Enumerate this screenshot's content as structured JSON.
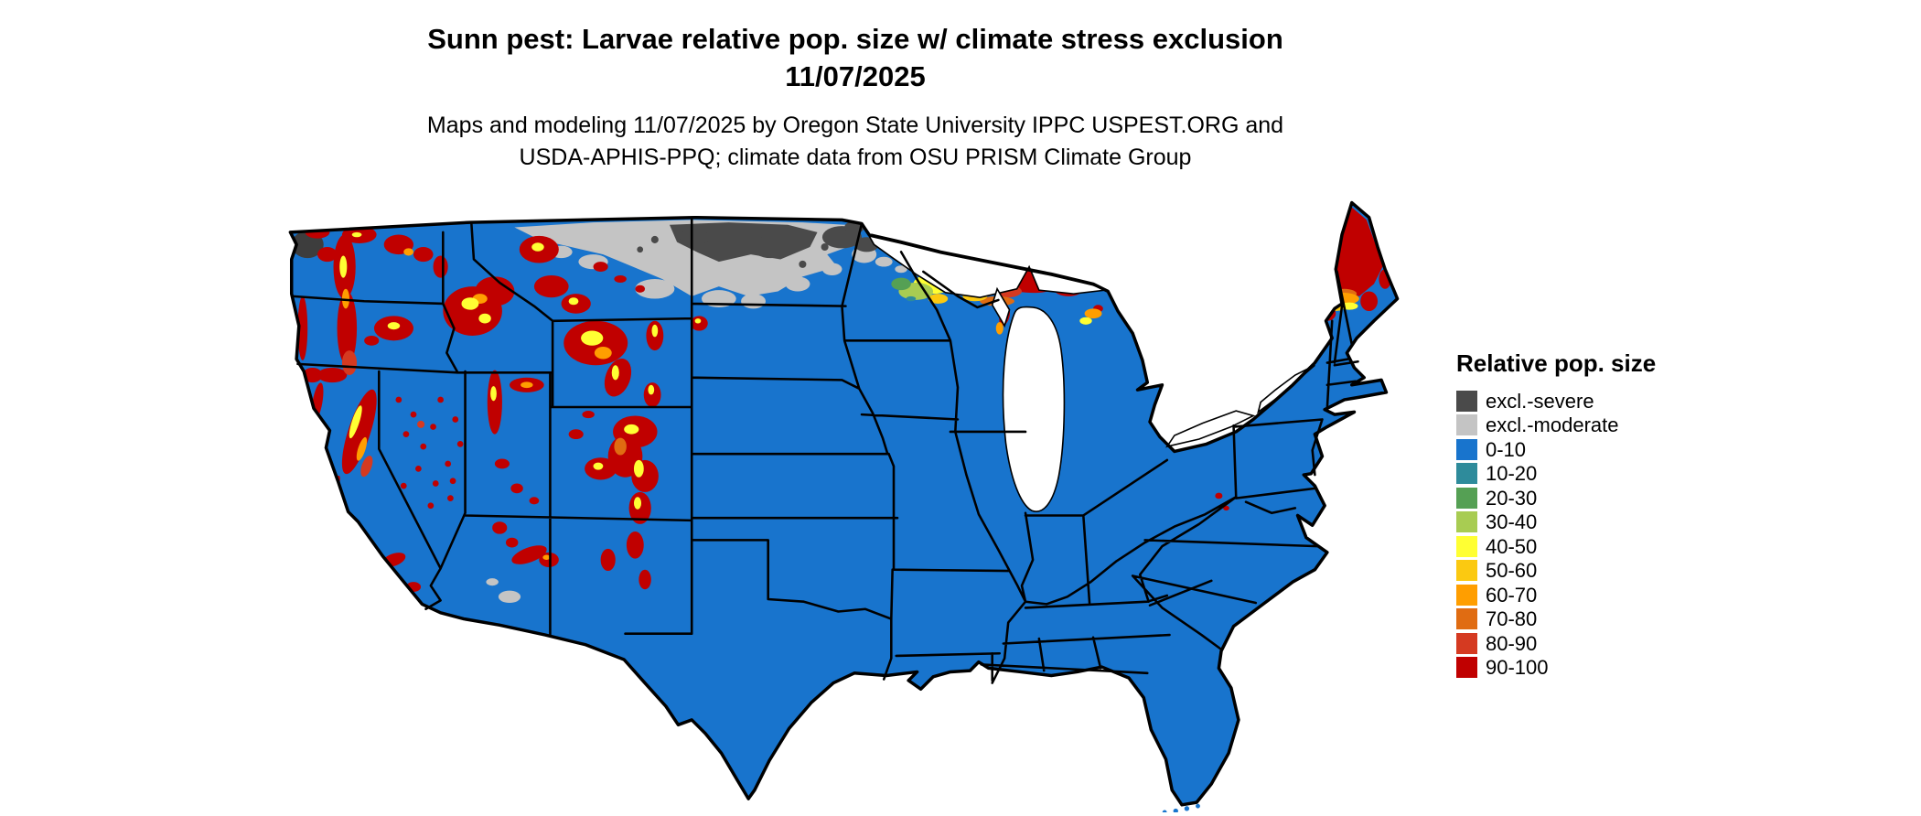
{
  "title": {
    "line1": "Sunn pest: Larvae relative pop. size w/ climate stress exclusion",
    "line2": "11/07/2025"
  },
  "subtitle": {
    "line1": "Maps and modeling 11/07/2025 by Oregon State University IPPC USPEST.ORG and",
    "line2": "USDA-APHIS-PPQ; climate data from OSU PRISM Climate Group"
  },
  "legend": {
    "title": "Relative pop. size",
    "entries": [
      {
        "label": "excl.-severe",
        "color": "#4a4a4a"
      },
      {
        "label": "excl.-moderate",
        "color": "#c4c4c4"
      },
      {
        "label": "0-10",
        "color": "#1874cd"
      },
      {
        "label": "10-20",
        "color": "#2e8b9b"
      },
      {
        "label": "20-30",
        "color": "#55a054"
      },
      {
        "label": "30-40",
        "color": "#a8cc52"
      },
      {
        "label": "40-50",
        "color": "#ffff33"
      },
      {
        "label": "50-60",
        "color": "#fbc911"
      },
      {
        "label": "60-70",
        "color": "#ff9e00"
      },
      {
        "label": "70-80",
        "color": "#e06c12"
      },
      {
        "label": "80-90",
        "color": "#d53a21"
      },
      {
        "label": "90-100",
        "color": "#c00000"
      }
    ]
  },
  "map": {
    "description": "Continental US raster map of Sunn pest larvae relative population size",
    "base_color": "#1874cd",
    "border_color": "#000000",
    "water_color": "#ffffff"
  }
}
